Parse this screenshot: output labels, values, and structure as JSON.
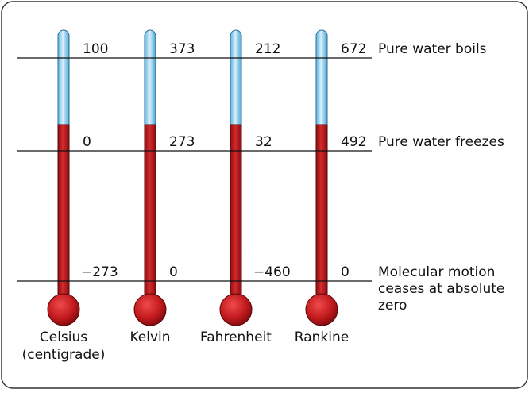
{
  "scales": [
    {
      "name": "Celsius",
      "note": "(centigrade)",
      "boils": "100",
      "freezes": "0",
      "absolute_zero": "−273"
    },
    {
      "name": "Kelvin",
      "boils": "373",
      "freezes": "273",
      "absolute_zero": "0"
    },
    {
      "name": "Fahrenheit",
      "boils": "212",
      "freezes": "32",
      "absolute_zero": "−460"
    },
    {
      "name": "Rankine",
      "boils": "672",
      "freezes": "492",
      "absolute_zero": "0"
    }
  ],
  "reference_lines": [
    {
      "label": [
        "Pure water boils"
      ]
    },
    {
      "label": [
        "Pure water freezes"
      ]
    },
    {
      "label": [
        "Molecular motion",
        "ceases at absolute",
        "zero"
      ]
    }
  ]
}
